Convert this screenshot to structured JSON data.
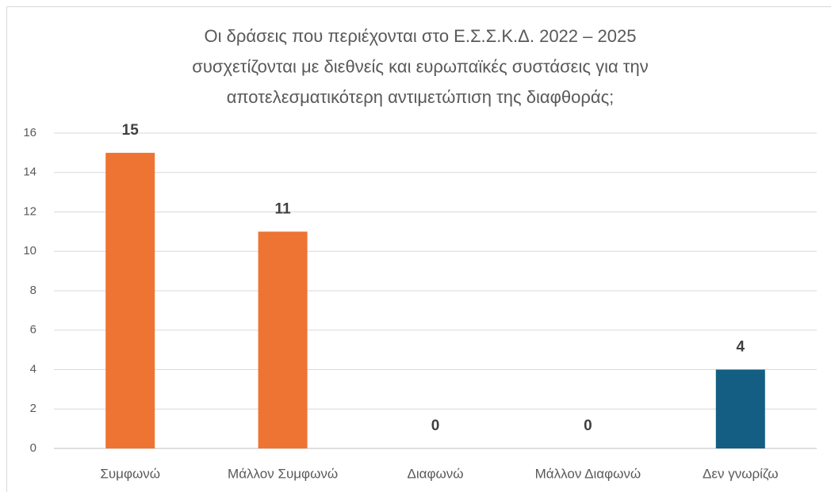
{
  "chart_data": {
    "type": "bar",
    "title": [
      "Οι δράσεις που περιέχονται στο Ε.Σ.Σ.Κ.Δ. 2022 – 2025",
      "συσχετίζονται με διεθνείς και ευρωπαϊκές συστάσεις για την",
      "αποτελεσματικότερη αντιμετώπιση της διαφθοράς;"
    ],
    "categories": [
      "Συμφωνώ",
      "Μάλλον Συμφωνώ",
      "Διαφωνώ",
      "Μάλλον Διαφωνώ",
      "Δεν γνωρίζω"
    ],
    "values": [
      15,
      11,
      0,
      0,
      4
    ],
    "colors": [
      "#ED7433",
      "#ED7433",
      "#ED7433",
      "#ED7433",
      "#135E82"
    ],
    "ylim": [
      0,
      16
    ],
    "yticks": [
      0,
      2,
      4,
      6,
      8,
      10,
      12,
      14,
      16
    ],
    "grid": true
  }
}
